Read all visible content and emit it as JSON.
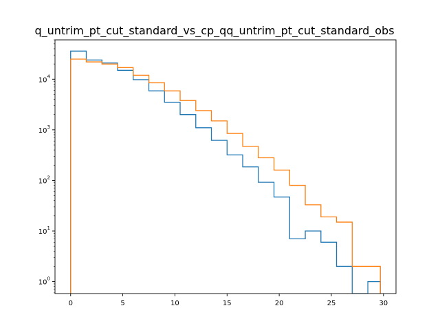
{
  "chart_data": {
    "type": "histogram",
    "title": "q_untrim_pt_cut_standard_vs_cp_qq_untrim_pt_cut_standard_obs",
    "xlabel": "",
    "ylabel": "",
    "xlim": [
      -1.5,
      31.2
    ],
    "ylim": [
      0.58,
      60000
    ],
    "yscale": "log",
    "grid": false,
    "x_ticks": [
      0,
      5,
      10,
      15,
      20,
      25,
      30
    ],
    "x_tick_labels": [
      "0",
      "5",
      "10",
      "15",
      "20",
      "25",
      "30"
    ],
    "y_ticks": [
      {
        "exp": "0",
        "value": 1
      },
      {
        "exp": "1",
        "value": 10
      },
      {
        "exp": "2",
        "value": 100
      },
      {
        "exp": "3",
        "value": 1000
      },
      {
        "exp": "4",
        "value": 10000
      }
    ],
    "y_tick_base": "10",
    "bin_edges": [
      0,
      1.5,
      3.0,
      4.5,
      6.0,
      7.5,
      9.0,
      10.5,
      12.0,
      13.5,
      15.0,
      16.5,
      18.0,
      19.5,
      21.0,
      22.5,
      24.0,
      25.5,
      27.0,
      28.5,
      29.7
    ],
    "series": [
      {
        "color": "#1f77b4",
        "values": [
          36000,
          24000,
          21000,
          15000,
          9800,
          5900,
          3500,
          2000,
          1100,
          620,
          320,
          185,
          92,
          47,
          7,
          10,
          6,
          2,
          0,
          1
        ]
      },
      {
        "color": "#ff7f0e",
        "values": [
          25000,
          22000,
          20000,
          17000,
          12000,
          8500,
          5900,
          3800,
          2400,
          1500,
          850,
          470,
          280,
          160,
          80,
          33,
          19,
          15,
          2,
          2
        ]
      }
    ]
  }
}
